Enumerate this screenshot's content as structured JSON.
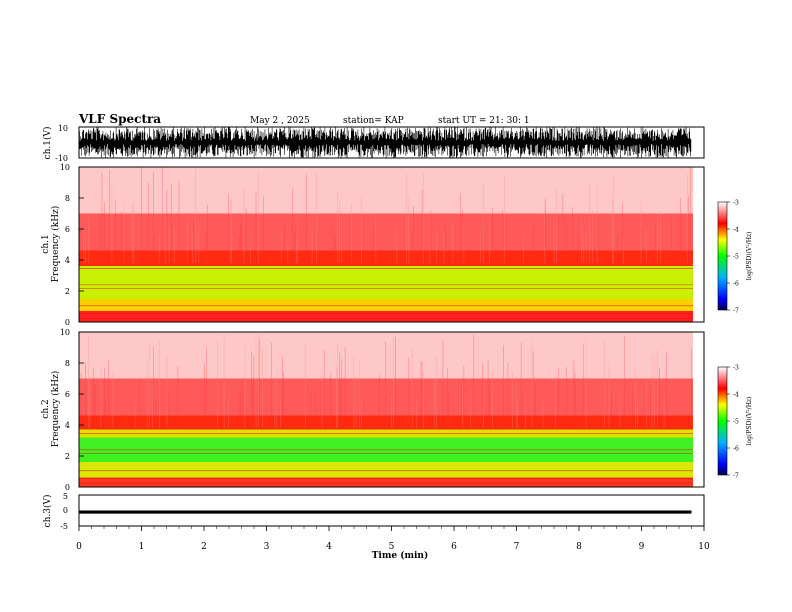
{
  "header": {
    "title": "VLF Spectra",
    "date": "May 2  , 2025",
    "station": "station= KAP",
    "start": "start  UT  =   21: 30: 1"
  },
  "chart_data": [
    {
      "type": "line",
      "panel": "ch1-waveform",
      "ylabel": "ch.1(V)",
      "ylim": [
        -10,
        10
      ],
      "yticks": [
        "10",
        "-10"
      ],
      "xlim": [
        0,
        10
      ],
      "data_extent_min": 9.8,
      "envelope": {
        "min": -10,
        "max": 10
      },
      "color": "#000000"
    },
    {
      "type": "heatmap",
      "panel": "ch1-spectrogram",
      "ylabel": "Frequency  (kHz)",
      "channel_label": "ch.1",
      "ylim": [
        0,
        10
      ],
      "yticks": [
        "0",
        "2",
        "4",
        "6",
        "8",
        "10"
      ],
      "xlim": [
        0,
        10
      ],
      "colorbar": {
        "label": "log(PSD)(V²/Hz)",
        "range": [
          -7,
          -3
        ],
        "ticks": [
          "-3",
          "-4",
          "-5",
          "-6",
          "-7"
        ],
        "colors": [
          "#000050",
          "#0000ff",
          "#00b0ff",
          "#00ff00",
          "#ffff00",
          "#ff0000",
          "#ffffff"
        ]
      },
      "bands": [
        {
          "f_from": 0,
          "f_to": 0.7,
          "color": "#ff2020"
        },
        {
          "f_from": 0.7,
          "f_to": 1.5,
          "color": "#ffd000"
        },
        {
          "f_from": 1.5,
          "f_to": 3.6,
          "color": "#c8f000"
        },
        {
          "f_from": 3.6,
          "f_to": 4.6,
          "color": "#ff2a10"
        },
        {
          "f_from": 4.6,
          "f_to": 7.0,
          "color": "#ff5a5a"
        },
        {
          "f_from": 7.0,
          "f_to": 10,
          "color": "#ffc8c8"
        }
      ]
    },
    {
      "type": "heatmap",
      "panel": "ch2-spectrogram",
      "ylabel": "Frequency  (kHz)",
      "channel_label": "ch.2",
      "ylim": [
        0,
        10
      ],
      "yticks": [
        "0",
        "2",
        "4",
        "6",
        "8",
        "10"
      ],
      "xlim": [
        0,
        10
      ],
      "colorbar": {
        "label": "log(PSD)(V²/Hz)",
        "range": [
          -7,
          -3
        ],
        "ticks": [
          "-3",
          "-4",
          "-5",
          "-6",
          "-7"
        ],
        "colors": [
          "#000050",
          "#0000ff",
          "#00b0ff",
          "#00ff00",
          "#ffff00",
          "#ff0000",
          "#ffffff"
        ]
      },
      "bands": [
        {
          "f_from": 0,
          "f_to": 0.6,
          "color": "#ff3a20"
        },
        {
          "f_from": 0.6,
          "f_to": 1.6,
          "color": "#d8e800"
        },
        {
          "f_from": 1.6,
          "f_to": 3.2,
          "color": "#40f020"
        },
        {
          "f_from": 3.2,
          "f_to": 3.7,
          "color": "#e0e000"
        },
        {
          "f_from": 3.7,
          "f_to": 4.6,
          "color": "#ff2a10"
        },
        {
          "f_from": 4.6,
          "f_to": 7.0,
          "color": "#ff5a5a"
        },
        {
          "f_from": 7.0,
          "f_to": 10,
          "color": "#ffc8c8"
        }
      ]
    },
    {
      "type": "line",
      "panel": "ch3-waveform",
      "ylabel": "ch.3(V)",
      "ylim": [
        -5,
        5
      ],
      "yticks": [
        "5",
        "0",
        "-5"
      ],
      "xlim": [
        0,
        10
      ],
      "data_extent_min": 9.8,
      "envelope": {
        "min": -1,
        "max": 0
      },
      "color": "#000000"
    }
  ],
  "xaxis": {
    "label": "Time  (min)",
    "ticks": [
      "0",
      "1",
      "2",
      "3",
      "4",
      "5",
      "6",
      "7",
      "8",
      "9",
      "10"
    ]
  }
}
